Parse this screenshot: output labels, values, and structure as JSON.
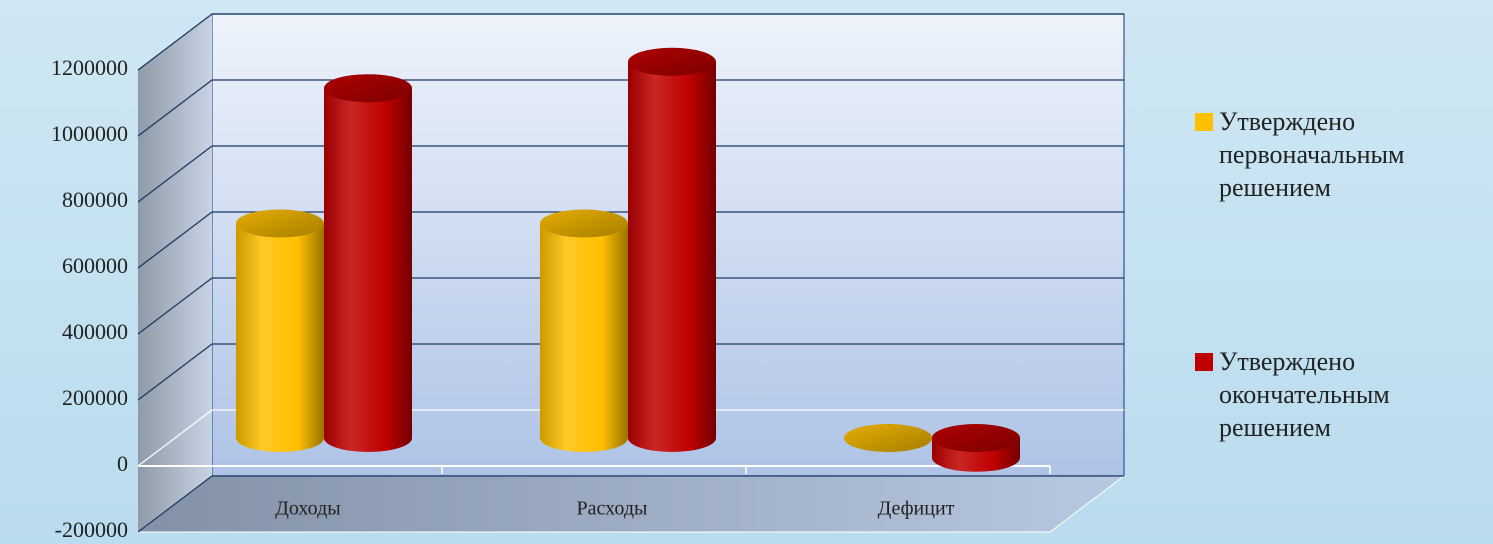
{
  "chart_data": {
    "type": "bar3d",
    "categories": [
      "Доходы",
      "Расходы",
      "Дефицит"
    ],
    "series": [
      {
        "name": "Утверждено первоначальным решением",
        "color": "#ffc000",
        "values": [
          650000,
          650000,
          0
        ]
      },
      {
        "name": "Утверждено окончательным решением",
        "color": "#c00000",
        "values": [
          1060000,
          1140000,
          -60000
        ]
      }
    ],
    "ylim": [
      -200000,
      1200000
    ],
    "yticks": [
      -200000,
      0,
      200000,
      400000,
      600000,
      800000,
      1000000,
      1200000
    ],
    "grid": true,
    "legend": "right"
  }
}
